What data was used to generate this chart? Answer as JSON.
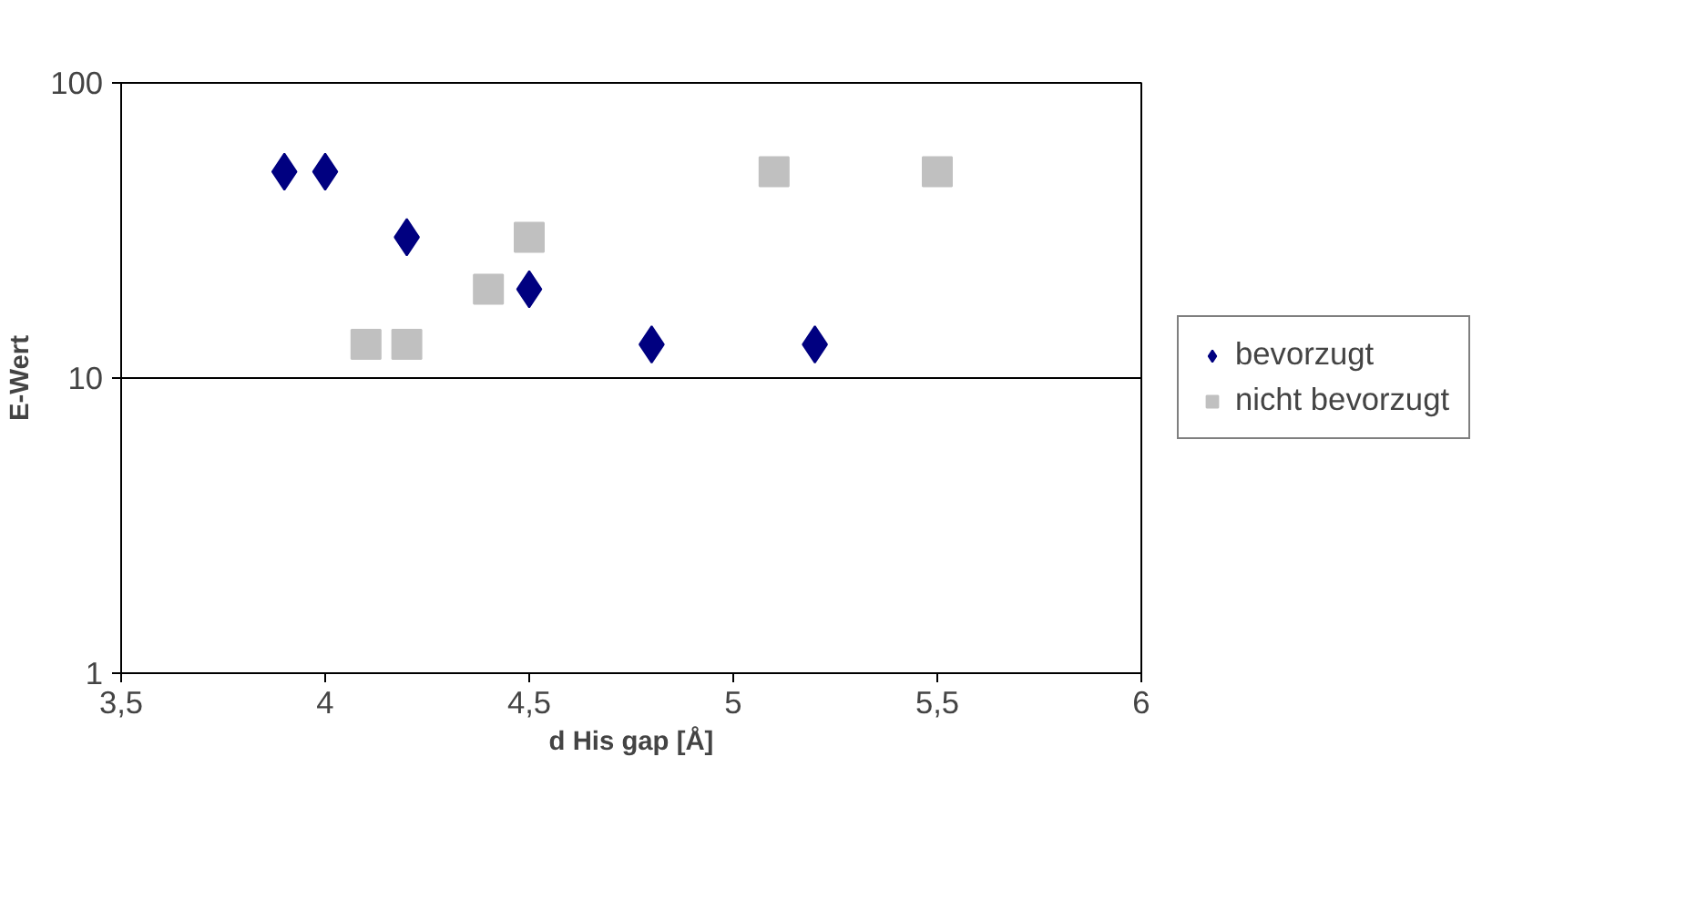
{
  "chart_data": {
    "type": "scatter",
    "xlabel": "d His gap [Å]",
    "ylabel": "E-Wert",
    "log": "y",
    "xlim": [
      3.5,
      6
    ],
    "ylim": [
      1,
      100
    ],
    "xticks": [
      {
        "value": 3.5,
        "label": "3,5"
      },
      4,
      {
        "value": 4.5,
        "label": "4,5"
      },
      5,
      {
        "value": 5.5,
        "label": "5,5"
      },
      6
    ],
    "yticks": [
      1,
      10,
      100
    ],
    "grid": "y",
    "legend": "right",
    "series": [
      {
        "name": "bevorzugt",
        "color": "#000080",
        "marker": "diamond",
        "x": [
          3.9,
          4.0,
          4.2,
          4.5,
          4.8,
          5.2
        ],
        "values": [
          50,
          50,
          30,
          20,
          13,
          13
        ]
      },
      {
        "name": "nicht bevorzugt",
        "color": "#c0c0c0",
        "marker": "square",
        "x": [
          4.1,
          4.2,
          4.4,
          4.5,
          5.1,
          5.5
        ],
        "values": [
          13,
          13,
          20,
          30,
          50,
          50
        ]
      }
    ]
  }
}
